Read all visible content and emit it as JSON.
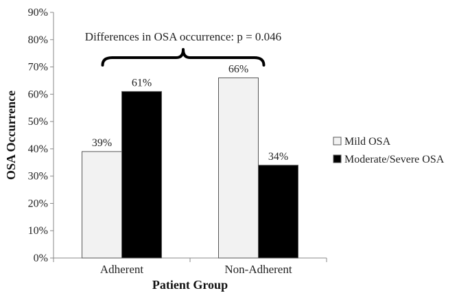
{
  "chart_data": {
    "type": "bar",
    "categories": [
      "Adherent",
      "Non-Adherent"
    ],
    "series": [
      {
        "name": "Mild OSA",
        "values": [
          39,
          66
        ],
        "labels": [
          "39%",
          "66%"
        ],
        "color": "#f2f2f2"
      },
      {
        "name": "Moderate/Severe OSA",
        "values": [
          61,
          34
        ],
        "labels": [
          "61%",
          "34%"
        ],
        "color": "#000000"
      }
    ],
    "xlabel": "Patient Group",
    "ylabel": "OSA Occurrence",
    "ylim": [
      0,
      90
    ],
    "yticks": [
      0,
      10,
      20,
      30,
      40,
      50,
      60,
      70,
      80,
      90
    ],
    "ytick_labels": [
      "0%",
      "10%",
      "20%",
      "30%",
      "40%",
      "50%",
      "60%",
      "70%",
      "80%",
      "90%"
    ],
    "grid": false,
    "legend_position": "right",
    "annotation": "Differences in OSA occurrence: p = 0.046"
  }
}
